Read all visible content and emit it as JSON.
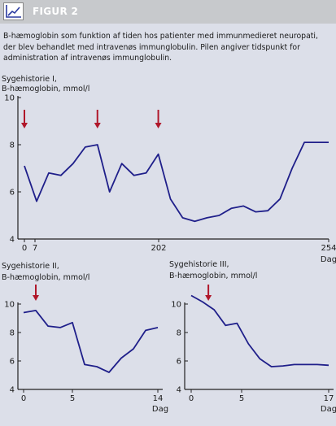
{
  "header": {
    "title": "FIGUR 2",
    "icon": "line-chart-icon"
  },
  "caption": "B-hæmoglobin som funktion af tiden hos patienter med immunmedieret neuropati, der blev behandlet med intravenøs immunglobulin. Pilen angiver tidspunkt for administration af intravenøs immunglobulin.",
  "colors": {
    "background": "#dcdfe9",
    "header": "#c7c9cc",
    "line": "#1f1f8a",
    "arrow": "#b0172a",
    "axis": "#222222"
  },
  "chart_data": [
    {
      "type": "line",
      "title_line1": "Sygehistorie I,",
      "title_line2": "B-hæmoglobin, mmol/l",
      "xlabel": "Dag",
      "ylim": [
        4,
        10
      ],
      "yticks": [
        "4",
        "6",
        "8",
        "10"
      ],
      "xlim": [
        0,
        254
      ],
      "xticks": [
        "0",
        "7",
        "202",
        "254"
      ],
      "tick_values": [
        0,
        7,
        202,
        254
      ],
      "series": [
        {
          "points": [
            [
              0,
              7.1
            ],
            [
              7,
              5.6
            ],
            [
              14,
              6.8
            ],
            [
              21,
              6.7
            ],
            [
              28,
              7.2
            ],
            [
              35,
              7.9
            ],
            [
              42,
              8.0
            ],
            [
              49,
              6.0
            ],
            [
              56,
              7.2
            ],
            [
              63,
              6.7
            ],
            [
              70,
              6.8
            ],
            [
              77,
              7.6
            ],
            [
              84,
              5.7
            ],
            [
              91,
              4.9
            ],
            [
              98,
              4.75
            ],
            [
              105,
              4.9
            ],
            [
              112,
              5.0
            ],
            [
              119,
              5.3
            ],
            [
              126,
              5.4
            ],
            [
              133,
              5.15
            ],
            [
              140,
              5.2
            ],
            [
              147,
              5.7
            ],
            [
              154,
              7.0
            ],
            [
              161,
              8.1
            ],
            [
              175,
              8.1
            ]
          ]
        }
      ],
      "note": "x index within panel, arrows at first, middle, 202",
      "arrows": [
        0,
        42,
        77
      ]
    },
    {
      "type": "line",
      "title_line1": "Sygehistorie II,",
      "title_line2": "B-hæmoglobin, mmol/l",
      "xlabel": "Dag",
      "ylim": [
        4,
        10
      ],
      "yticks": [
        "4",
        "6",
        "8",
        "10"
      ],
      "xlim": [
        0,
        14
      ],
      "xticks": [
        "0",
        "5",
        "14"
      ],
      "tick_values": [
        0,
        5,
        14
      ],
      "series": [
        {
          "points": [
            [
              0,
              9.4
            ],
            [
              1,
              9.55
            ],
            [
              2,
              8.45
            ],
            [
              3,
              8.35
            ],
            [
              4,
              8.7
            ],
            [
              5,
              5.75
            ],
            [
              6,
              5.6
            ],
            [
              7,
              5.2
            ],
            [
              8,
              6.2
            ],
            [
              9,
              6.85
            ],
            [
              10,
              8.15
            ],
            [
              11,
              8.35
            ]
          ]
        }
      ],
      "arrows": [
        1
      ]
    },
    {
      "type": "line",
      "title_line1": "Sygehistorie III,",
      "title_line2": "B-hæmoglobin, mmol/l",
      "xlabel": "Dag",
      "ylim": [
        4,
        10
      ],
      "yticks": [
        "4",
        "6",
        "8",
        "10"
      ],
      "xlim": [
        0,
        17
      ],
      "xticks": [
        "0",
        "5",
        "17"
      ],
      "tick_values": [
        0,
        5,
        17
      ],
      "series": [
        {
          "points": [
            [
              0,
              10.6
            ],
            [
              1,
              10.15
            ],
            [
              2,
              9.6
            ],
            [
              3,
              8.5
            ],
            [
              4,
              8.65
            ],
            [
              5,
              7.2
            ],
            [
              6,
              6.15
            ],
            [
              7,
              5.6
            ],
            [
              8,
              5.65
            ],
            [
              9,
              5.75
            ],
            [
              10,
              5.75
            ],
            [
              11,
              5.75
            ],
            [
              12,
              5.7
            ]
          ]
        }
      ],
      "arrows": [
        1.5
      ]
    }
  ]
}
